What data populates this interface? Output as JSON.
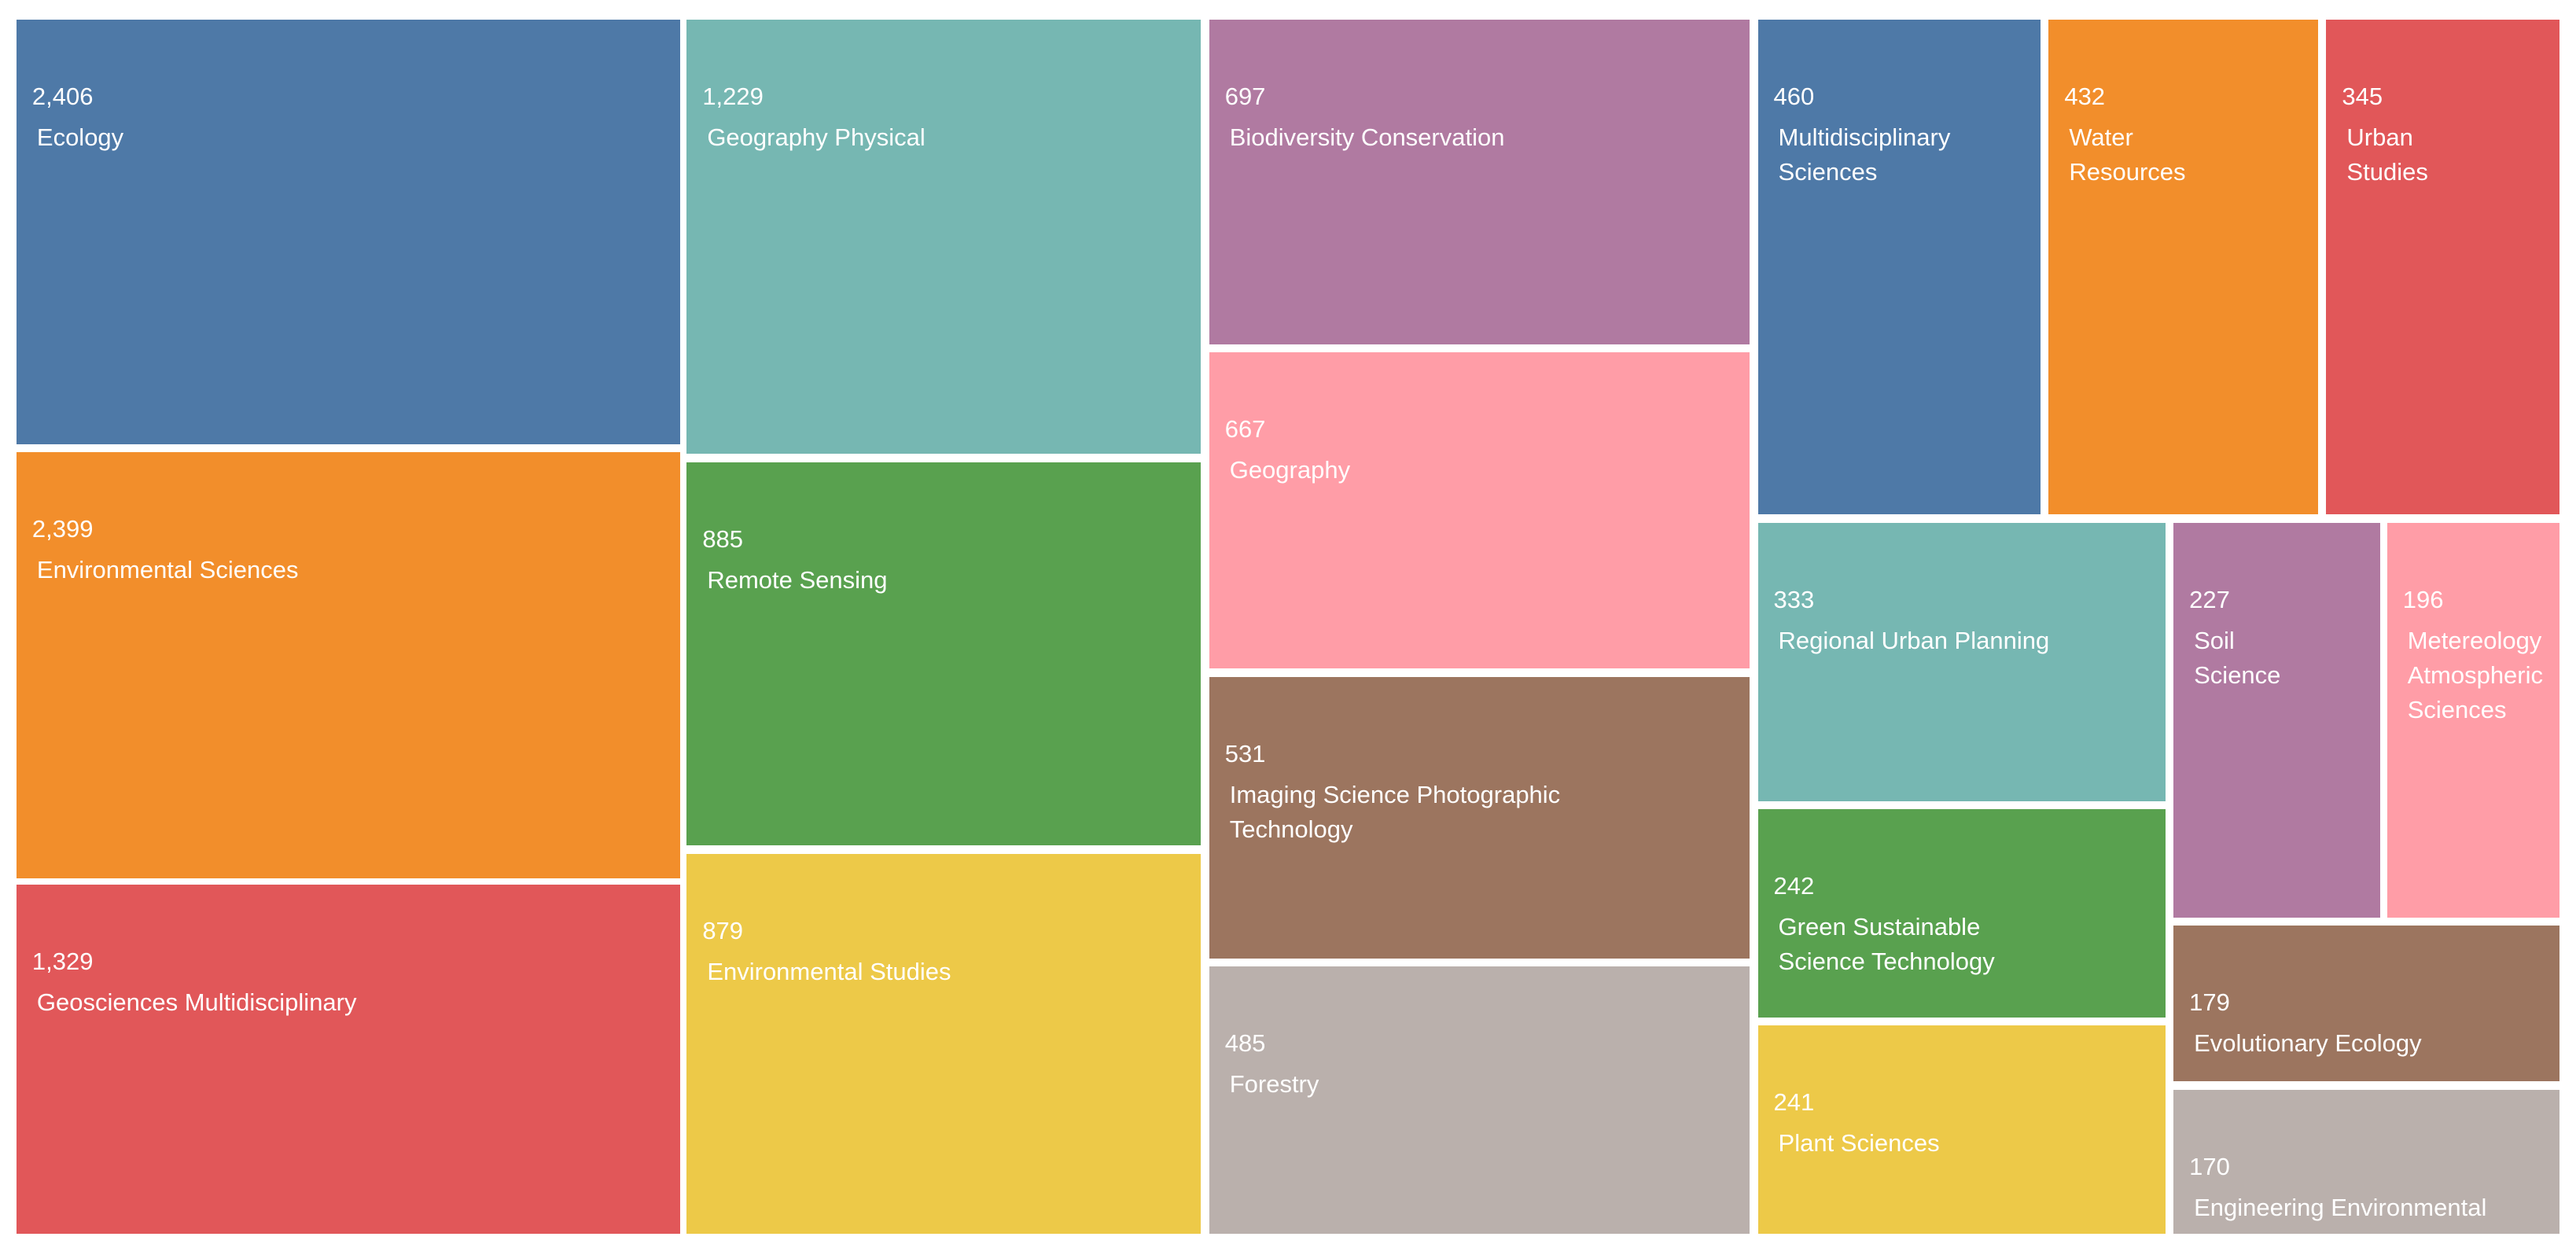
{
  "chart_data": {
    "type": "treemap",
    "categories": [
      "Ecology",
      "Environmental Sciences",
      "Geosciences Multidisciplinary",
      "Geography Physical",
      "Remote Sensing",
      "Environmental Studies",
      "Biodiversity Conservation",
      "Geography",
      "Imaging Science Photographic Technology",
      "Forestry",
      "Multidisciplinary Sciences",
      "Water Resources",
      "Urban Studies",
      "Regional Urban Planning",
      "Soil Science",
      "Metereology Atmospheric Sciences",
      "Green Sustainable Science Technology",
      "Plant Sciences",
      "Evolutionary Ecology",
      "Engineering Environmental"
    ],
    "values": [
      2406,
      2399,
      1329,
      1229,
      885,
      879,
      697,
      667,
      531,
      485,
      460,
      432,
      345,
      333,
      227,
      196,
      242,
      241,
      179,
      170
    ],
    "value_labels": [
      "2,406",
      "2,399",
      "1,329",
      "1,229",
      "885",
      "879",
      "697",
      "667",
      "531",
      "485",
      "460",
      "432",
      "345",
      "333",
      "227",
      "196",
      "242",
      "241",
      "179",
      "170"
    ],
    "colors": [
      "#4e79a7",
      "#f28e2b",
      "#e15759",
      "#76b7b2",
      "#59a14f",
      "#edc948",
      "#b07aa1",
      "#ff9da7",
      "#9c755f",
      "#bab0ac",
      "#4e79a7",
      "#f28e2b",
      "#e15759",
      "#76b7b2",
      "#b07aa1",
      "#ff9da7",
      "#59a14f",
      "#edc948",
      "#9c755f",
      "#bab0ac"
    ]
  }
}
